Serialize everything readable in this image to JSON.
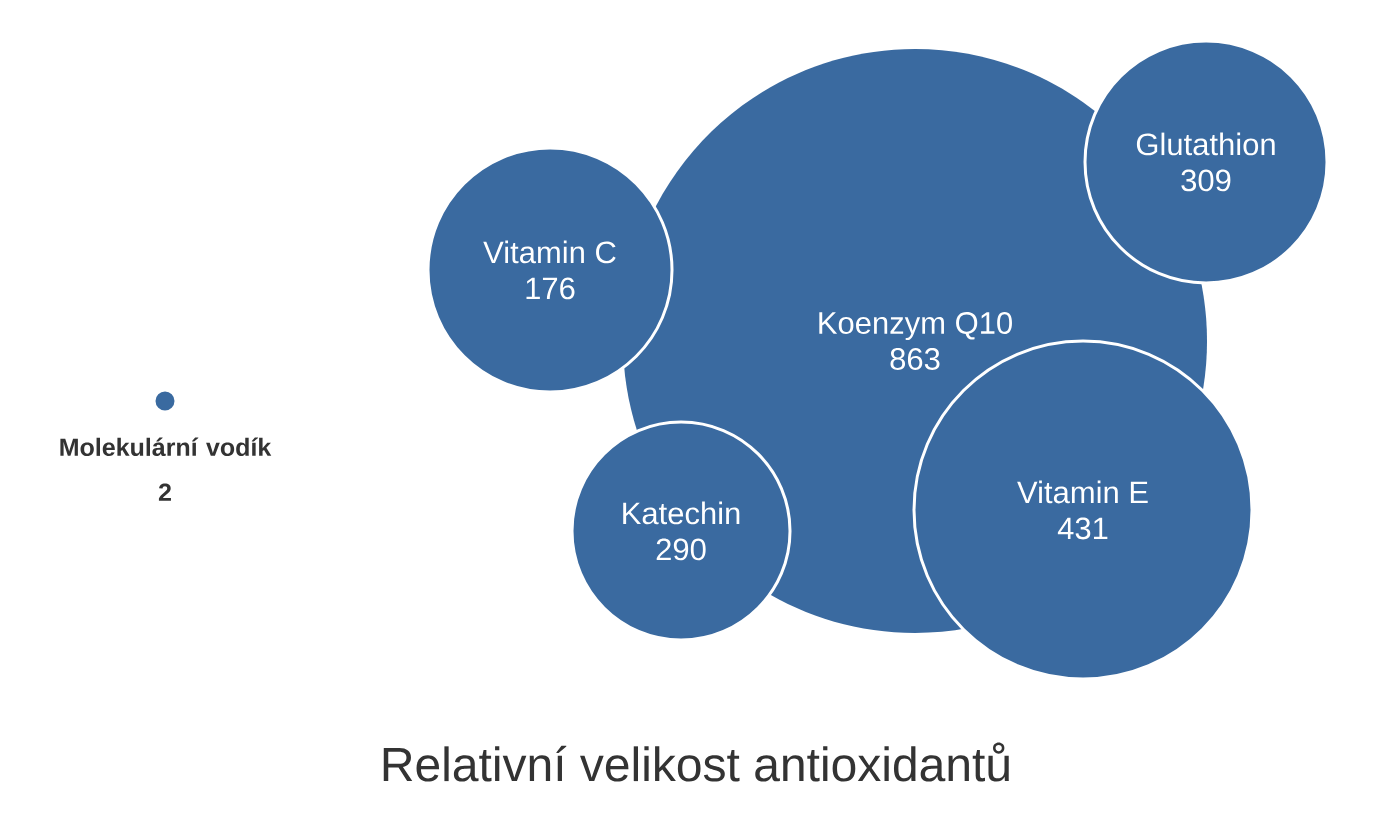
{
  "chart_data": {
    "type": "other",
    "title": "Relativní velikost antioxidantů",
    "categories": [
      "Koenzym Q10",
      "Vitamin C",
      "Glutathion",
      "Vitamin E",
      "Katechin",
      "Molekulární vodík"
    ],
    "values": [
      863,
      176,
      309,
      431,
      290,
      2
    ],
    "color": "#3a6aa0",
    "data_labels": true
  }
}
